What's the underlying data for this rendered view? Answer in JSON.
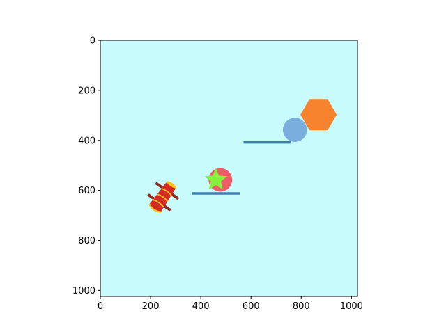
{
  "plot": {
    "background_color": "#c8fcfc",
    "x_range": [
      0,
      1024
    ],
    "y_range": [
      0,
      1024
    ],
    "y_inverted": true,
    "x_ticks": [
      0,
      200,
      400,
      600,
      800,
      1000
    ],
    "y_ticks": [
      0,
      200,
      400,
      600,
      800,
      1000
    ]
  },
  "scene": {
    "cannon": {
      "icon": "cannon-icon",
      "x": 250,
      "y": 625,
      "rotation_deg": -55,
      "body_color": "#d42a24",
      "ring_color": "#f7c21e",
      "wheel_color": "#8f2a20"
    },
    "platforms": [
      {
        "name": "platform-lower",
        "x1": 365,
        "x2": 555,
        "y": 612,
        "color": "#3d7fb6"
      },
      {
        "name": "platform-upper",
        "x1": 570,
        "x2": 760,
        "y": 408,
        "color": "#3d7fb6"
      }
    ],
    "red_ball": {
      "x": 478,
      "y": 558,
      "r": 47,
      "color": "#ee5c68"
    },
    "star": {
      "x": 460,
      "y": 558,
      "r_outer": 48,
      "r_inner": 21,
      "color": "#84f23c"
    },
    "blue_ball": {
      "x": 775,
      "y": 358,
      "r": 48,
      "color": "#7aaedd"
    },
    "hexagon": {
      "x": 869,
      "y": 297,
      "r": 72,
      "color": "#f7832f"
    }
  }
}
